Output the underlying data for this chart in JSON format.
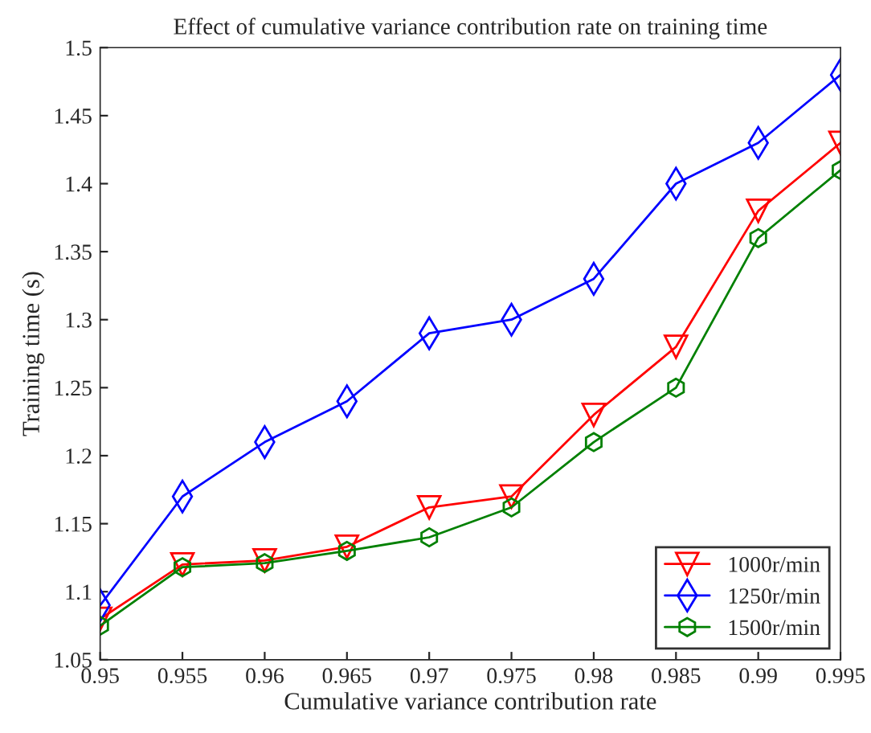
{
  "chart_data": {
    "type": "line",
    "title": "Effect of cumulative variance contribution rate on training time",
    "xlabel": "Cumulative variance contribution rate",
    "ylabel": "Training time (s)",
    "x": [
      0.95,
      0.955,
      0.96,
      0.965,
      0.97,
      0.975,
      0.98,
      0.985,
      0.99,
      0.995
    ],
    "series": [
      {
        "name": "1000r/min",
        "color": "#ff0000",
        "marker": "triangle",
        "values": [
          1.08,
          1.12,
          1.123,
          1.133,
          1.162,
          1.17,
          1.23,
          1.28,
          1.38,
          1.43
        ]
      },
      {
        "name": "1250r/min",
        "color": "#0000ff",
        "marker": "diamond",
        "values": [
          1.09,
          1.17,
          1.21,
          1.24,
          1.29,
          1.3,
          1.33,
          1.4,
          1.43,
          1.48
        ]
      },
      {
        "name": "1500r/min",
        "color": "#008000",
        "marker": "star",
        "values": [
          1.075,
          1.118,
          1.121,
          1.13,
          1.14,
          1.162,
          1.21,
          1.25,
          1.36,
          1.41
        ]
      }
    ],
    "xlim": [
      0.95,
      0.995
    ],
    "xticks": [
      0.95,
      0.955,
      0.96,
      0.965,
      0.97,
      0.975,
      0.98,
      0.985,
      0.99,
      0.995
    ],
    "ylim": [
      1.05,
      1.5
    ],
    "yticks": [
      1.05,
      1.1,
      1.15,
      1.2,
      1.25,
      1.3,
      1.35,
      1.4,
      1.45,
      1.5
    ],
    "grid": false,
    "legend": "bottom right",
    "line_style": "solid"
  }
}
